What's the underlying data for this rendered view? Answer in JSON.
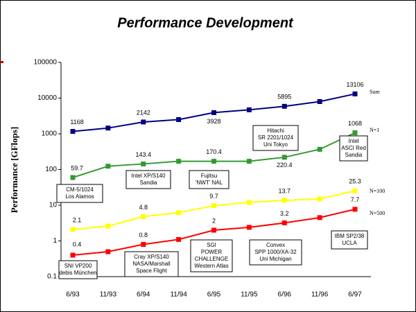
{
  "chart_data": {
    "type": "line",
    "title": "Performance Development",
    "y_label": "Performance [GFlops]",
    "log_scale": true,
    "categories": [
      "6/93",
      "11/93",
      "6/94",
      "11/94",
      "6/95",
      "11/95",
      "6/96",
      "11/96",
      "6/97"
    ],
    "ylim": [
      0.1,
      100000
    ],
    "yticks": [
      0.1,
      1,
      10,
      100,
      1000,
      10000,
      100000
    ],
    "series": [
      {
        "name": "Sum",
        "color": "#000080",
        "values": [
          1168,
          1450,
          2142,
          2500,
          3928,
          4700,
          5895,
          8000,
          13106
        ],
        "value_labels": [
          "1168",
          null,
          "2142",
          null,
          "3928",
          null,
          "5895",
          null,
          "13106"
        ]
      },
      {
        "name": "N=1",
        "color": "#339933",
        "values": [
          59.7,
          124,
          143.4,
          170.4,
          170.4,
          170.4,
          220.4,
          368,
          1068
        ],
        "value_labels": [
          "59.7",
          null,
          "143.4",
          null,
          "170.4",
          null,
          "220.4",
          null,
          "1068"
        ]
      },
      {
        "name": "N=100",
        "color": "#ffff00",
        "values": [
          2.1,
          2.6,
          4.8,
          6.2,
          9.7,
          12,
          13.7,
          15,
          25.3
        ],
        "value_labels": [
          "2.1",
          null,
          "4.8",
          null,
          "9.7",
          null,
          "13.7",
          null,
          "25.3"
        ]
      },
      {
        "name": "N=500",
        "color": "#ff0000",
        "values": [
          0.4,
          0.5,
          0.8,
          1.1,
          2,
          2.4,
          3.2,
          4.5,
          7.7
        ],
        "value_labels": [
          "0.4",
          null,
          "0.8",
          null,
          "2",
          null,
          "3.2",
          null,
          "7.7"
        ]
      }
    ],
    "annotations": [
      {
        "lines": [
          "CM-5/1024",
          "Los Alamos"
        ]
      },
      {
        "lines": [
          "Intel XP/S140",
          "Sandia"
        ]
      },
      {
        "lines": [
          "Fujitsu",
          "'NWT' NAL"
        ]
      },
      {
        "lines": [
          "Hitachi",
          "SR 2201/1024",
          "Uni Tokyo"
        ]
      },
      {
        "lines": [
          "Intel",
          "ASCI Red",
          "Sandia"
        ]
      },
      {
        "lines": [
          "SNI VP200",
          "debis München"
        ]
      },
      {
        "lines": [
          "Cray XP/S140",
          "NASA/Marshall",
          "Space Flight"
        ]
      },
      {
        "lines": [
          "SGI",
          "POWER",
          "CHALLENGE",
          "Western Atlas"
        ]
      },
      {
        "lines": [
          "Convex",
          "SPP 1000/XA-32",
          "Uni Michigan"
        ]
      },
      {
        "lines": [
          "IBM SP2/38",
          "UCLA"
        ]
      }
    ]
  }
}
